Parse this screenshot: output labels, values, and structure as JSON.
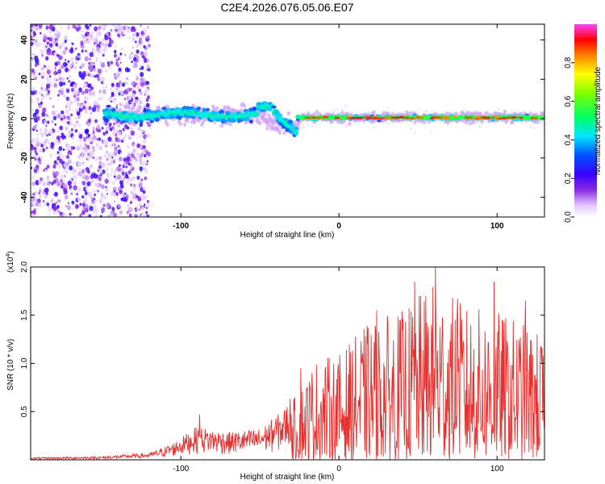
{
  "chart_data": [
    {
      "type": "heatmap",
      "title": "C2E4.2026.076.05.06.E07",
      "xlabel": "Height of straight line (km)",
      "ylabel": "Frequency (Hz)",
      "xlim": [
        -195,
        130
      ],
      "ylim": [
        -50,
        48
      ],
      "xticks": [
        -100,
        0,
        100
      ],
      "yticks": [
        -40,
        -20,
        0,
        20,
        40
      ],
      "colorbar": {
        "label": "Normalized spectral amplitude",
        "range": [
          0,
          1
        ],
        "ticks": [
          "0.0",
          "0.2",
          "0.4",
          "0.6",
          "0.8"
        ]
      },
      "description_regions": [
        {
          "x_range": [
            -195,
            -120
          ],
          "freq_range": [
            -50,
            48
          ],
          "amplitude": "low, scattered"
        },
        {
          "x_range": [
            -145,
            -25
          ],
          "freq_center": 2,
          "freq_spread": 6,
          "amplitude": "0.2-0.5"
        },
        {
          "x_range": [
            -25,
            130
          ],
          "freq_center": 0.5,
          "freq_spread": 2.5,
          "amplitude": "0.5-0.95"
        }
      ]
    },
    {
      "type": "line",
      "xlabel": "Height of straight line (km)",
      "ylabel": "SNR (10 * v/v)",
      "yscale_label": "(x10",
      "yscale_exponent": "4",
      "yscale_suffix": ")",
      "xlim": [
        -195,
        130
      ],
      "ylim": [
        0,
        2.0
      ],
      "xticks": [
        -100,
        0,
        100
      ],
      "yticks": [
        "0.5",
        "1.0",
        "1.5",
        "2.0"
      ],
      "line_color": "#e8312f",
      "envelope": [
        {
          "x": -195,
          "y": 0.02
        },
        {
          "x": -150,
          "y": 0.03
        },
        {
          "x": -120,
          "y": 0.06
        },
        {
          "x": -105,
          "y": 0.15
        },
        {
          "x": -90,
          "y": 0.3
        },
        {
          "x": -70,
          "y": 0.25
        },
        {
          "x": -50,
          "y": 0.28
        },
        {
          "x": -35,
          "y": 0.45
        },
        {
          "x": -25,
          "y": 0.75
        },
        {
          "x": -15,
          "y": 1.05
        },
        {
          "x": 0,
          "y": 1.1
        },
        {
          "x": 20,
          "y": 1.45
        },
        {
          "x": 40,
          "y": 1.55
        },
        {
          "x": 60,
          "y": 1.85
        },
        {
          "x": 80,
          "y": 1.6
        },
        {
          "x": 100,
          "y": 1.55
        },
        {
          "x": 120,
          "y": 1.4
        },
        {
          "x": 130,
          "y": 1.3
        }
      ],
      "peaks": [
        {
          "x": -88,
          "y": 0.47
        },
        {
          "x": -24,
          "y": 0.95
        },
        {
          "x": 24,
          "y": 1.55
        },
        {
          "x": 48,
          "y": 1.85
        },
        {
          "x": 61,
          "y": 2.0
        },
        {
          "x": 75,
          "y": 1.67
        },
        {
          "x": 98,
          "y": 1.85
        },
        {
          "x": 118,
          "y": 1.65
        }
      ]
    }
  ]
}
